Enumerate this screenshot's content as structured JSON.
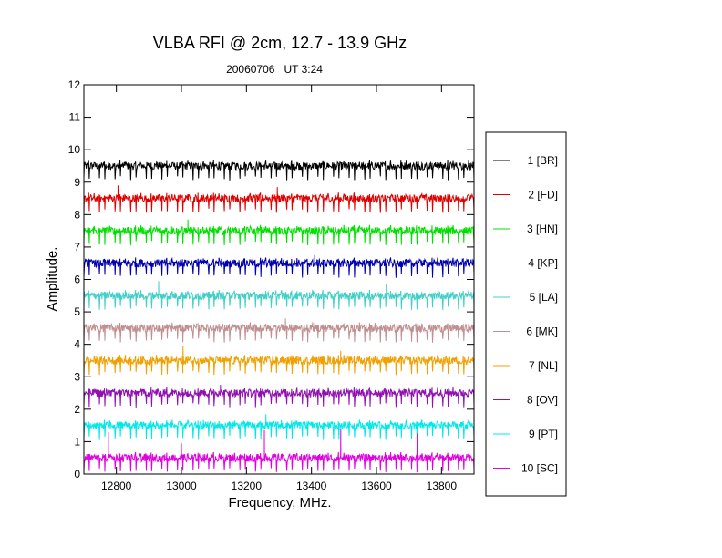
{
  "chart_data": {
    "type": "line",
    "title": "VLBA RFI @ 2cm, 12.7 - 13.9 GHz",
    "subtitle": "20060706   UT 3:24",
    "xlabel": "Frequency, MHz.",
    "ylabel": "Amplitude.",
    "xlim": [
      12700,
      13900
    ],
    "ylim": [
      0,
      12
    ],
    "xticks": [
      "12800",
      "13000",
      "13200",
      "13400",
      "13600",
      "13800"
    ],
    "xtick_values": [
      12800,
      13000,
      13200,
      13400,
      13600,
      13800
    ],
    "yticks": [
      "0",
      "1",
      "2",
      "3",
      "4",
      "5",
      "6",
      "7",
      "8",
      "9",
      "10",
      "11",
      "12"
    ],
    "ytick_values": [
      0,
      1,
      2,
      3,
      4,
      5,
      6,
      7,
      8,
      9,
      10,
      11,
      12
    ],
    "grid": false,
    "legend_position": "right",
    "pattern": {
      "x_start": 12700,
      "x_end": 13900,
      "channel_spacing_mhz": 16,
      "dip_depth": 0.45,
      "noise_amplitude": 0.12
    },
    "series": [
      {
        "name": "1 [BR]",
        "color": "#000000",
        "baseline": 9.5,
        "spikes": []
      },
      {
        "name": "2 [FD]",
        "color": "#e00000",
        "baseline": 8.5,
        "spikes": [
          {
            "x": 12805,
            "y": 8.9
          },
          {
            "x": 13295,
            "y": 8.85
          }
        ]
      },
      {
        "name": "3 [HN]",
        "color": "#00e000",
        "baseline": 7.5,
        "spikes": [
          {
            "x": 13020,
            "y": 7.85
          }
        ]
      },
      {
        "name": "4 [KP]",
        "color": "#0000b0",
        "baseline": 6.5,
        "spikes": [
          {
            "x": 13410,
            "y": 6.75
          }
        ]
      },
      {
        "name": "5 [LA]",
        "color": "#40d0c8",
        "baseline": 5.5,
        "spikes": [
          {
            "x": 12930,
            "y": 5.95
          },
          {
            "x": 13630,
            "y": 5.85
          }
        ]
      },
      {
        "name": "6 [MK]",
        "color": "#c09090",
        "baseline": 4.5,
        "spikes": [
          {
            "x": 13320,
            "y": 4.8
          }
        ]
      },
      {
        "name": "7 [NL]",
        "color": "#f0a000",
        "baseline": 3.5,
        "spikes": [
          {
            "x": 13005,
            "y": 3.95
          },
          {
            "x": 13490,
            "y": 3.8
          }
        ]
      },
      {
        "name": "8 [OV]",
        "color": "#9010b0",
        "baseline": 2.5,
        "spikes": [
          {
            "x": 13120,
            "y": 2.75
          }
        ]
      },
      {
        "name": "9 [PT]",
        "color": "#00e8e8",
        "baseline": 1.5,
        "spikes": [
          {
            "x": 13260,
            "y": 1.85
          }
        ]
      },
      {
        "name": "10 [SC]",
        "color": "#e000e0",
        "baseline": 0.5,
        "spikes": [
          {
            "x": 12775,
            "y": 1.3
          },
          {
            "x": 13000,
            "y": 0.95
          },
          {
            "x": 13255,
            "y": 1.35
          },
          {
            "x": 13490,
            "y": 1.4
          },
          {
            "x": 13725,
            "y": 1.25
          }
        ]
      }
    ]
  }
}
